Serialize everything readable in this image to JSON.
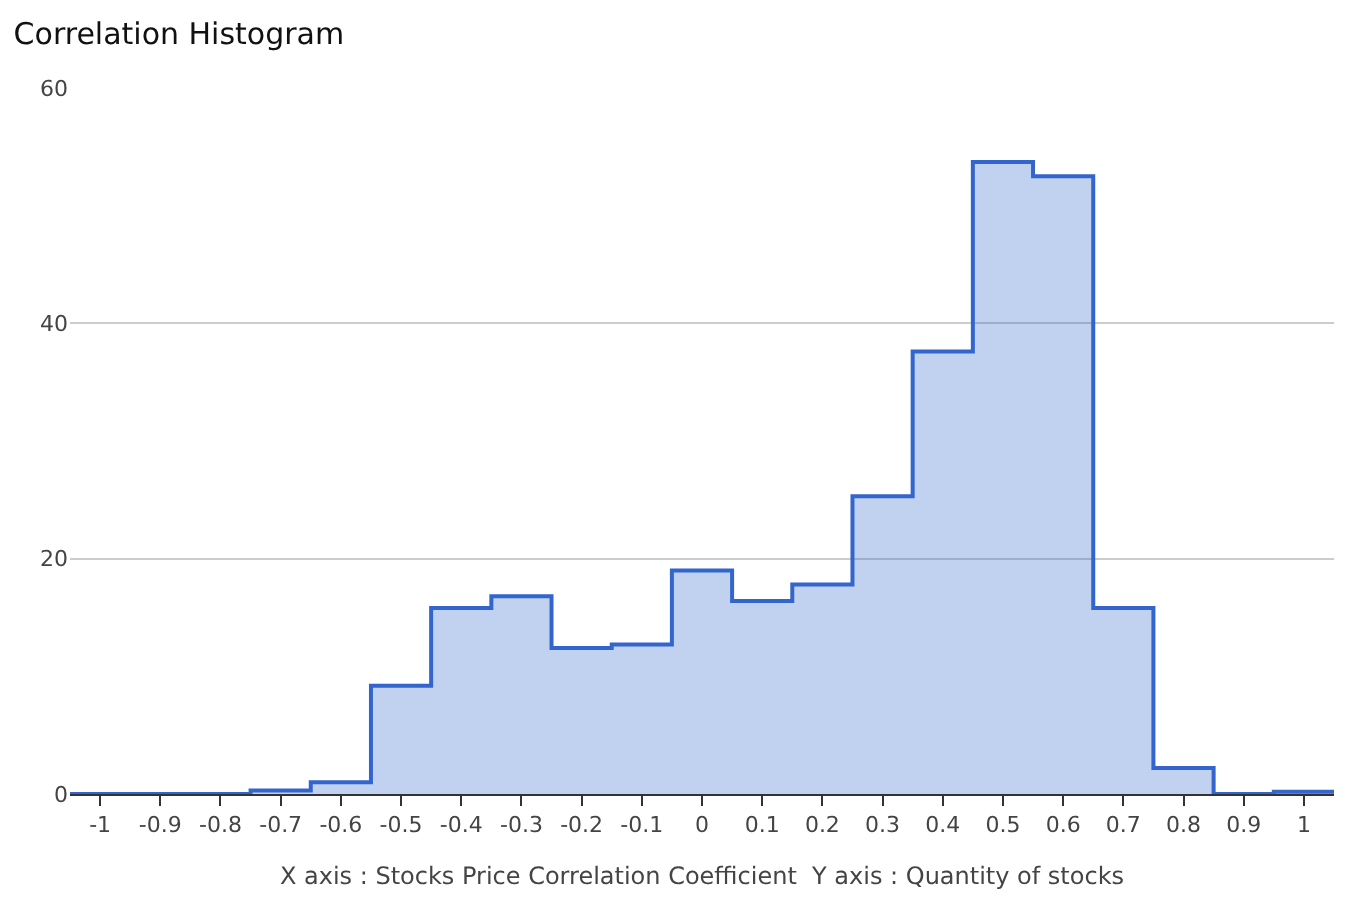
{
  "chart_data": {
    "type": "histogram",
    "title": "Correlation Histogram",
    "xlabel": "X axis : Stocks Price Correlation Coefficient  Y axis : Quantity of stocks",
    "bins": [
      -1.05,
      -0.95,
      -0.85,
      -0.75,
      -0.65,
      -0.55,
      -0.45,
      -0.35,
      -0.25,
      -0.15,
      -0.05,
      0.05,
      0.15,
      0.25,
      0.35,
      0.45,
      0.55,
      0.65,
      0.75,
      0.85,
      0.95,
      1.05
    ],
    "values": [
      0,
      0,
      0,
      0.3,
      1,
      9.2,
      15.8,
      16.8,
      12.4,
      12.7,
      19,
      16.4,
      17.8,
      25.3,
      37.6,
      53.7,
      52.5,
      15.8,
      2.2,
      0,
      0.2
    ],
    "color": "#3366cc",
    "xlim": [
      -1.05,
      1.05
    ],
    "xticks": [
      -1,
      -0.9,
      -0.8,
      -0.7,
      -0.6,
      -0.5,
      -0.4,
      -0.3,
      -0.2,
      -0.1,
      0,
      0.1,
      0.2,
      0.3,
      0.4,
      0.5,
      0.6,
      0.7,
      0.8,
      0.9,
      1
    ],
    "ylim": [
      0,
      60
    ],
    "yticks": [
      0,
      20,
      40,
      60
    ],
    "grid": "y"
  }
}
